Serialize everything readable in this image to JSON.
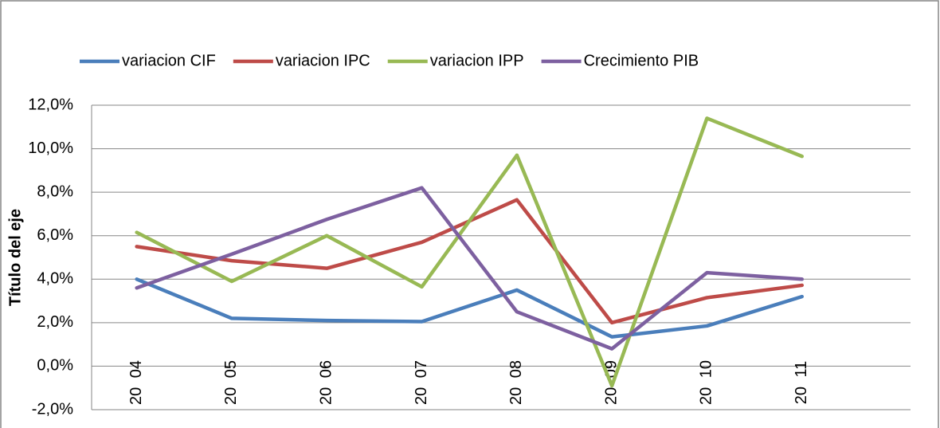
{
  "chart_data": {
    "type": "line",
    "y_label": "Título del eje",
    "categories": [
      "20 04",
      "20 05",
      "20 06",
      "20 07",
      "20 08",
      "20 09",
      "20 10",
      "20 11"
    ],
    "series": [
      {
        "name": "variacion CIF",
        "color": "#4a7ebb",
        "values": [
          4.0,
          2.2,
          2.1,
          2.05,
          3.5,
          1.35,
          1.85,
          3.2
        ]
      },
      {
        "name": "variacion IPC",
        "color": "#be4b48",
        "values": [
          5.5,
          4.85,
          4.5,
          5.7,
          7.65,
          2.0,
          3.15,
          3.72
        ]
      },
      {
        "name": "variacion IPP",
        "color": "#98b954",
        "values": [
          6.15,
          3.9,
          6.0,
          3.65,
          9.7,
          -0.9,
          11.4,
          9.65
        ]
      },
      {
        "name": "Crecimiento PIB",
        "color": "#7d60a0",
        "values": [
          3.6,
          5.15,
          6.75,
          8.2,
          2.5,
          0.8,
          4.3,
          4.0
        ]
      }
    ],
    "ylim": [
      -2,
      12
    ],
    "yticks": [
      {
        "value": -2,
        "label": "-2,0%"
      },
      {
        "value": 0,
        "label": "0,0%"
      },
      {
        "value": 2,
        "label": "2,0%"
      },
      {
        "value": 4,
        "label": "4,0%"
      },
      {
        "value": 6,
        "label": "6,0%"
      },
      {
        "value": 8,
        "label": "8,0%"
      },
      {
        "value": 10,
        "label": "10,0%"
      },
      {
        "value": 12,
        "label": "12,0%"
      }
    ],
    "grid": true,
    "legend": "top"
  }
}
